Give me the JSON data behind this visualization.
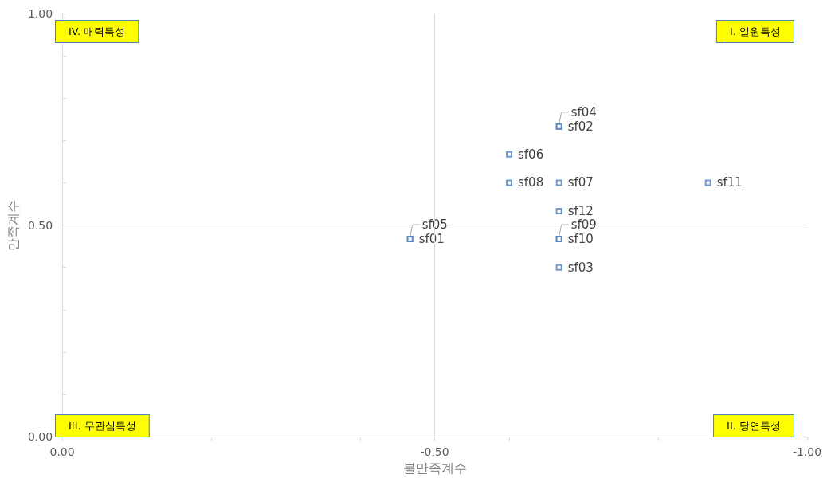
{
  "chart_data": {
    "type": "scatter",
    "xlabel": "불만족계수",
    "ylabel": "만족계수",
    "marker": "square",
    "grid": false,
    "x": [
      -0.667,
      -0.667,
      -0.6,
      -0.6,
      -0.667,
      -0.867,
      -0.667,
      -0.667,
      -0.667,
      -0.667,
      -0.467,
      -0.467
    ],
    "series": [
      {
        "color": "#4f81bd",
        "values": [
          0.733,
          0.733,
          0.667,
          0.6,
          0.6,
          0.6,
          0.533,
          0.467,
          0.467,
          0.4,
          0.467,
          0.467
        ]
      }
    ],
    "xlim": [
      0,
      -1
    ],
    "ylim": [
      0,
      1
    ],
    "xticks": [
      {
        "value": 0,
        "label": "0.00"
      },
      {
        "value": -0.2,
        "label": null
      },
      {
        "value": -0.4,
        "label": null
      },
      {
        "value": -0.5,
        "label": "-0.50"
      },
      {
        "value": -0.6,
        "label": null
      },
      {
        "value": -0.8,
        "label": null
      },
      {
        "value": -1,
        "label": "-1.00"
      }
    ],
    "yticks": [
      {
        "value": 0,
        "label": "0.00"
      },
      {
        "value": 0.1,
        "label": null
      },
      {
        "value": 0.2,
        "label": null
      },
      {
        "value": 0.3,
        "label": null
      },
      {
        "value": 0.4,
        "label": null
      },
      {
        "value": 0.5,
        "label": "0.50"
      },
      {
        "value": 0.6,
        "label": null
      },
      {
        "value": 0.7,
        "label": null
      },
      {
        "value": 0.8,
        "label": null
      },
      {
        "value": 0.9,
        "label": null
      },
      {
        "value": 1,
        "label": "1.00"
      }
    ],
    "ref_lines": [
      {
        "axis": "x",
        "value": -0.5,
        "color": "#d9d9d9"
      },
      {
        "axis": "y",
        "value": 0.5,
        "color": "#d9d9d9"
      }
    ],
    "annotations": [
      "IV. 매력특성",
      "I. 일원특성",
      "III. 무관심특성",
      "II. 당연특성",
      {
        "text": "sf04",
        "x": -0.667,
        "y": 0.733
      },
      {
        "text": "sf02",
        "x": -0.667,
        "y": 0.733
      },
      {
        "text": "sf06",
        "x": -0.6,
        "y": 0.667
      },
      {
        "text": "sf08",
        "x": -0.6,
        "y": 0.6
      },
      {
        "text": "sf07",
        "x": -0.667,
        "y": 0.6
      },
      {
        "text": "sf11",
        "x": -0.867,
        "y": 0.6
      },
      {
        "text": "sf12",
        "x": -0.667,
        "y": 0.533
      },
      {
        "text": "sf09",
        "x": -0.667,
        "y": 0.467
      },
      {
        "text": "sf10",
        "x": -0.667,
        "y": 0.467
      },
      {
        "text": "sf03",
        "x": -0.667,
        "y": 0.4
      },
      {
        "text": "sf05",
        "x": -0.467,
        "y": 0.467
      },
      {
        "text": "sf01",
        "x": -0.467,
        "y": 0.467
      }
    ]
  }
}
